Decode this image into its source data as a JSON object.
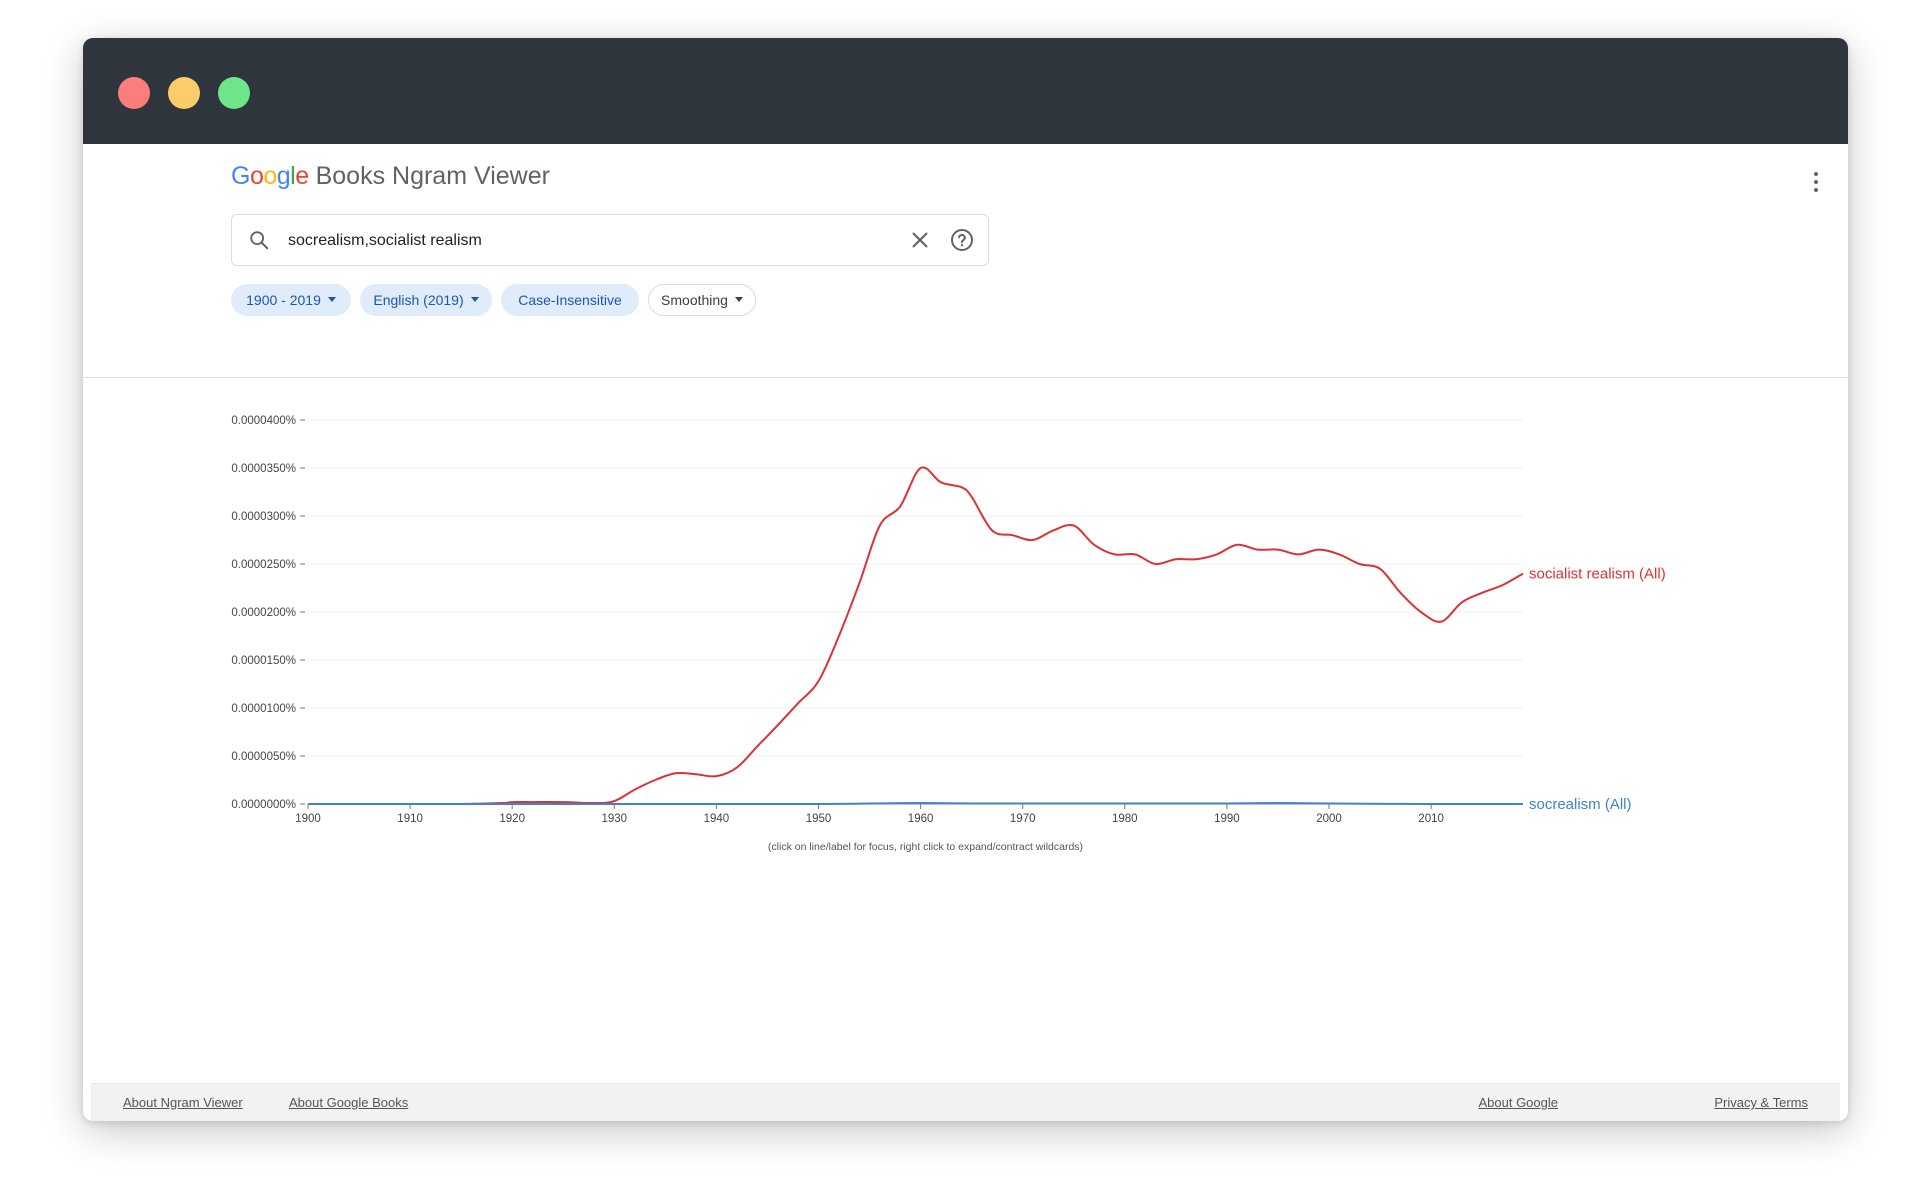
{
  "app": {
    "logo_word": "Google",
    "product": "Books Ngram Viewer"
  },
  "search": {
    "value": "socrealism,socialist realism"
  },
  "chips": [
    {
      "label": "1900 - 2019",
      "dropdown": true
    },
    {
      "label": "English (2019)",
      "dropdown": true
    },
    {
      "label": "Case-Insensitive",
      "dropdown": false
    },
    {
      "label": "Smoothing",
      "dropdown": true
    }
  ],
  "chart_data": {
    "type": "line",
    "xlim": [
      1900,
      2019
    ],
    "ylim": [
      0,
      4e-05
    ],
    "x_ticks": [
      1900,
      1910,
      1920,
      1930,
      1940,
      1950,
      1960,
      1970,
      1980,
      1990,
      2000,
      2010
    ],
    "y_ticks": [
      {
        "value": 4e-05,
        "label": "0.0000400%"
      },
      {
        "value": 3.5e-05,
        "label": "0.0000350%"
      },
      {
        "value": 3e-05,
        "label": "0.0000300%"
      },
      {
        "value": 2.5e-05,
        "label": "0.0000250%"
      },
      {
        "value": 2e-05,
        "label": "0.0000200%"
      },
      {
        "value": 1.5e-05,
        "label": "0.0000150%"
      },
      {
        "value": 1e-05,
        "label": "0.0000100%"
      },
      {
        "value": 5e-06,
        "label": "0.0000050%"
      },
      {
        "value": 0,
        "label": "0.0000000%"
      }
    ],
    "hint": "(click on line/label for focus, right click to expand/contract wildcards)",
    "series": [
      {
        "name": "socialist realism (All)",
        "color": "#db3236",
        "x": [
          1900,
          1905,
          1910,
          1915,
          1919,
          1920,
          1922,
          1925,
          1928,
          1930,
          1932,
          1934,
          1936,
          1938,
          1940,
          1942,
          1944,
          1946,
          1948,
          1950,
          1952,
          1954,
          1956,
          1958,
          1960,
          1962,
          1964,
          1965,
          1967,
          1969,
          1971,
          1973,
          1975,
          1977,
          1979,
          1981,
          1983,
          1985,
          1987,
          1989,
          1991,
          1993,
          1995,
          1997,
          1999,
          2001,
          2003,
          2005,
          2007,
          2009,
          2011,
          2013,
          2015,
          2017,
          2019
        ],
        "y": [
          0,
          0,
          0,
          0,
          1e-07,
          2e-07,
          2e-07,
          2e-07,
          1e-07,
          3e-07,
          1.5e-06,
          2.5e-06,
          3.2e-06,
          3.1e-06,
          2.9e-06,
          3.8e-06,
          6e-06,
          8.2e-06,
          1.05e-05,
          1.28e-05,
          1.75e-05,
          2.3e-05,
          2.9e-05,
          3.1e-05,
          3.5e-05,
          3.35e-05,
          3.3e-05,
          3.2e-05,
          2.85e-05,
          2.8e-05,
          2.75e-05,
          2.85e-05,
          2.9e-05,
          2.7e-05,
          2.6e-05,
          2.6e-05,
          2.5e-05,
          2.55e-05,
          2.55e-05,
          2.6e-05,
          2.7e-05,
          2.65e-05,
          2.65e-05,
          2.6e-05,
          2.65e-05,
          2.6e-05,
          2.5e-05,
          2.45e-05,
          2.2e-05,
          2e-05,
          1.9e-05,
          2.1e-05,
          2.2e-05,
          2.28e-05,
          2.4e-05
        ]
      },
      {
        "name": "socrealism (All)",
        "color": "#3d85c6",
        "x": [
          1900,
          1920,
          1940,
          1950,
          1955,
          1960,
          1965,
          1970,
          1980,
          1990,
          1995,
          2000,
          2010,
          2019
        ],
        "y": [
          0,
          0,
          0,
          0,
          5e-08,
          1e-07,
          5e-08,
          5e-08,
          5e-08,
          5e-08,
          1e-07,
          5e-08,
          0,
          0
        ]
      }
    ]
  },
  "footer": {
    "left": [
      "About Ngram Viewer",
      "About Google Books"
    ],
    "right": [
      "About Google",
      "Privacy & Terms"
    ]
  }
}
